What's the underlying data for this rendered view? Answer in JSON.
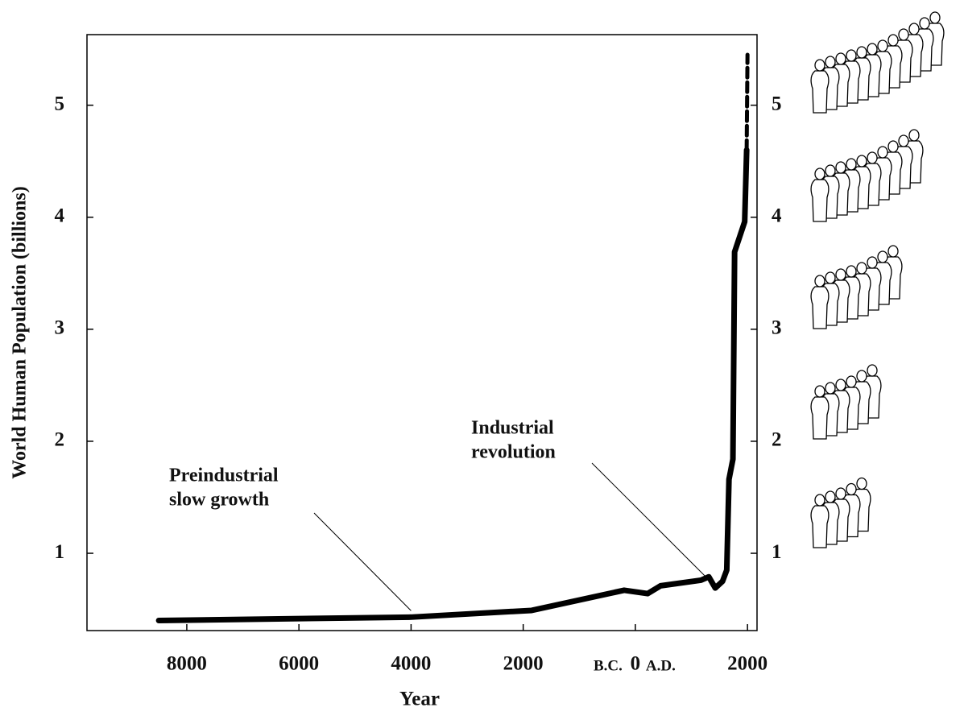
{
  "chart_data": {
    "type": "line",
    "x_label": "Year",
    "y_label": "World Human Population (billions)",
    "x": [
      -8500,
      -4000,
      -1850,
      -200,
      218,
      450,
      1170,
      1310,
      1425,
      1555,
      1630,
      1670,
      1740,
      1770,
      1950,
      1985,
      2000
    ],
    "series": [
      {
        "color": "#000000",
        "style": "solid",
        "values": [
          0.4,
          0.43,
          0.49,
          0.67,
          0.64,
          0.71,
          0.76,
          0.79,
          0.69,
          0.75,
          0.85,
          1.66,
          1.84,
          3.69,
          3.96,
          4.6,
          null
        ]
      },
      {
        "color": "#000000",
        "style": "dashed",
        "values": [
          null,
          null,
          null,
          null,
          null,
          null,
          null,
          null,
          null,
          null,
          null,
          null,
          null,
          null,
          null,
          4.6,
          5.45
        ]
      }
    ],
    "xlim": [
      -9780,
      2170
    ],
    "xticks": [
      {
        "value": -8000,
        "label": "8000"
      },
      {
        "value": -6000,
        "label": "6000"
      },
      {
        "value": -4000,
        "label": "4000"
      },
      {
        "value": -2000,
        "label": "2000"
      },
      0,
      2000
    ],
    "x_era_labels": [
      "B.C.",
      "A.D."
    ],
    "ylim": [
      0.31,
      5.63
    ],
    "yticks": [
      1,
      2,
      3,
      4,
      5
    ],
    "right_axis_ticks": true,
    "annotations": [
      {
        "text": [
          "Preindustrial",
          "slow growth"
        ],
        "x": -4000,
        "y": 0.43
      },
      {
        "text": [
          "Industrial",
          "revolution"
        ],
        "x": 1425,
        "y": 0.72
      }
    ]
  }
}
